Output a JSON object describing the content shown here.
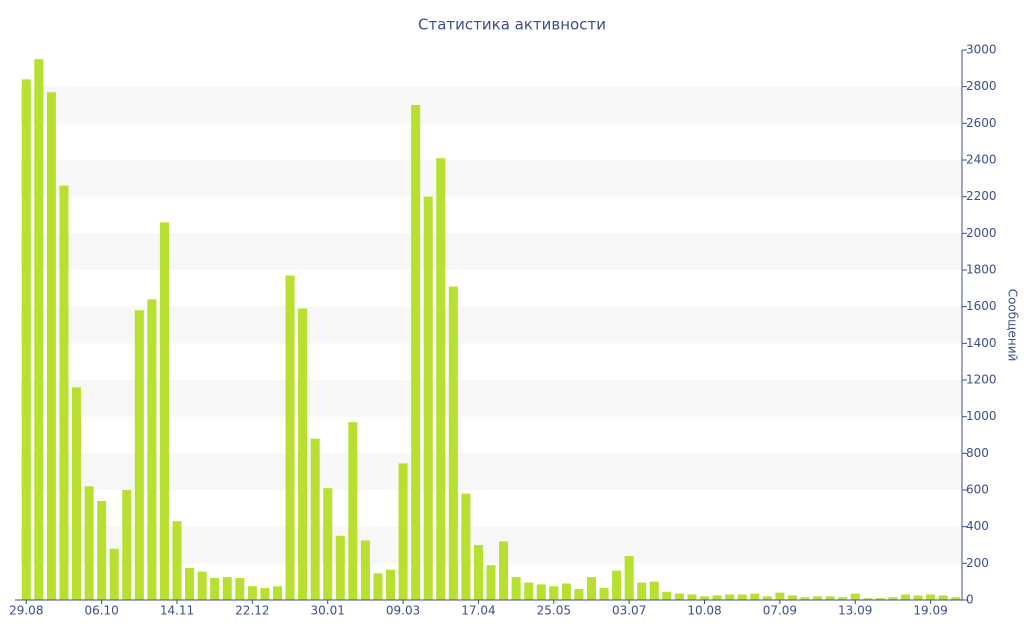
{
  "chart_data": {
    "type": "bar",
    "title": "Статистика активности",
    "y_label": "Сообщений",
    "categories": [
      "29.08",
      null,
      null,
      null,
      null,
      null,
      "06.10",
      null,
      null,
      null,
      null,
      null,
      "14.11",
      null,
      null,
      null,
      null,
      null,
      "22.12",
      null,
      null,
      null,
      null,
      null,
      "30.01",
      null,
      null,
      null,
      null,
      null,
      "09.03",
      null,
      null,
      null,
      null,
      null,
      "17.04",
      null,
      null,
      null,
      null,
      null,
      "25.05",
      null,
      null,
      null,
      null,
      null,
      "03.07",
      null,
      null,
      null,
      null,
      null,
      "10.08",
      null,
      null,
      null,
      null,
      null,
      "07.09",
      null,
      null,
      null,
      null,
      null,
      "13.09",
      null,
      null,
      null,
      null,
      null,
      "19.09",
      null,
      null
    ],
    "values": [
      2840,
      2950,
      2770,
      2260,
      1160,
      620,
      540,
      280,
      600,
      1580,
      1640,
      2060,
      430,
      175,
      155,
      120,
      125,
      120,
      75,
      65,
      75,
      1770,
      1590,
      880,
      610,
      350,
      970,
      325,
      145,
      165,
      745,
      2700,
      2200,
      2410,
      1710,
      580,
      300,
      190,
      320,
      125,
      95,
      85,
      75,
      90,
      60,
      125,
      65,
      160,
      240,
      95,
      100,
      45,
      35,
      30,
      20,
      25,
      30,
      30,
      35,
      20,
      40,
      25,
      15,
      20,
      20,
      15,
      35,
      10,
      10,
      15,
      30,
      25,
      30,
      25,
      15
    ],
    "color": "#b8e030",
    "ylim": [
      0,
      3000
    ],
    "yticks": [
      0,
      200,
      400,
      600,
      800,
      1000,
      1200,
      1400,
      1600,
      1800,
      2000,
      2200,
      2400,
      2600,
      2800,
      3000
    ],
    "y_axis_side": "right",
    "alternate_bands": true
  }
}
